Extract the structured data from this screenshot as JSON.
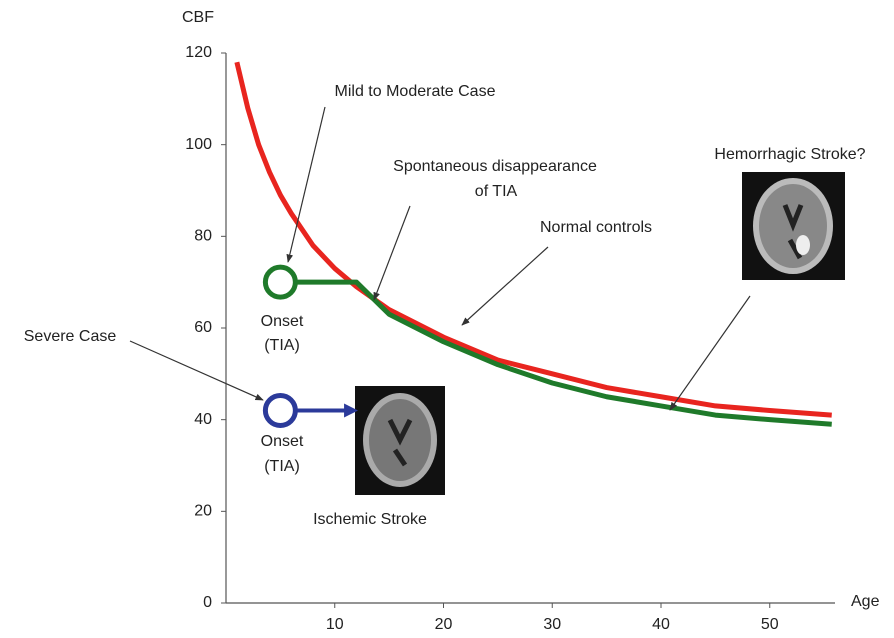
{
  "chart_data": {
    "type": "line",
    "x_label": "Age",
    "y_label": "CBF",
    "xlim": [
      0,
      56
    ],
    "ylim": [
      0,
      120
    ],
    "xticks": [
      10,
      20,
      30,
      40,
      50
    ],
    "yticks": [
      0,
      20,
      40,
      60,
      80,
      100,
      120
    ],
    "series": [
      {
        "name": "Normal controls",
        "color": "#e8251f",
        "x": [
          1,
          2,
          3,
          4,
          5,
          6,
          8,
          10,
          12,
          15,
          20,
          25,
          30,
          35,
          40,
          45,
          50,
          55.7
        ],
        "values": [
          118,
          108,
          100,
          94,
          89,
          85,
          78,
          73,
          69,
          64,
          58,
          53,
          50,
          47,
          45,
          43,
          42,
          41
        ]
      },
      {
        "color": "#1f7a2a",
        "x": [
          5,
          12,
          15,
          20,
          25,
          30,
          35,
          40,
          45,
          50,
          55.7
        ],
        "values": [
          70,
          70,
          63,
          57,
          52,
          48,
          45,
          43,
          41,
          40,
          39
        ]
      },
      {
        "color": "#2b3a9a",
        "x": [
          5,
          11.5
        ],
        "values": [
          42,
          42
        ]
      }
    ],
    "annotations": {
      "mild": "Mild to Moderate Case",
      "spontaneous": [
        "Spontaneous disappearance",
        "of TIA"
      ],
      "hemorrhagic": "Hemorrhagic Stroke?",
      "severe": "Severe Case",
      "onset_green": [
        "Onset",
        "(TIA)"
      ],
      "onset_blue": [
        "Onset",
        "(TIA)"
      ],
      "ischemic": "Ischemic Stroke"
    }
  }
}
